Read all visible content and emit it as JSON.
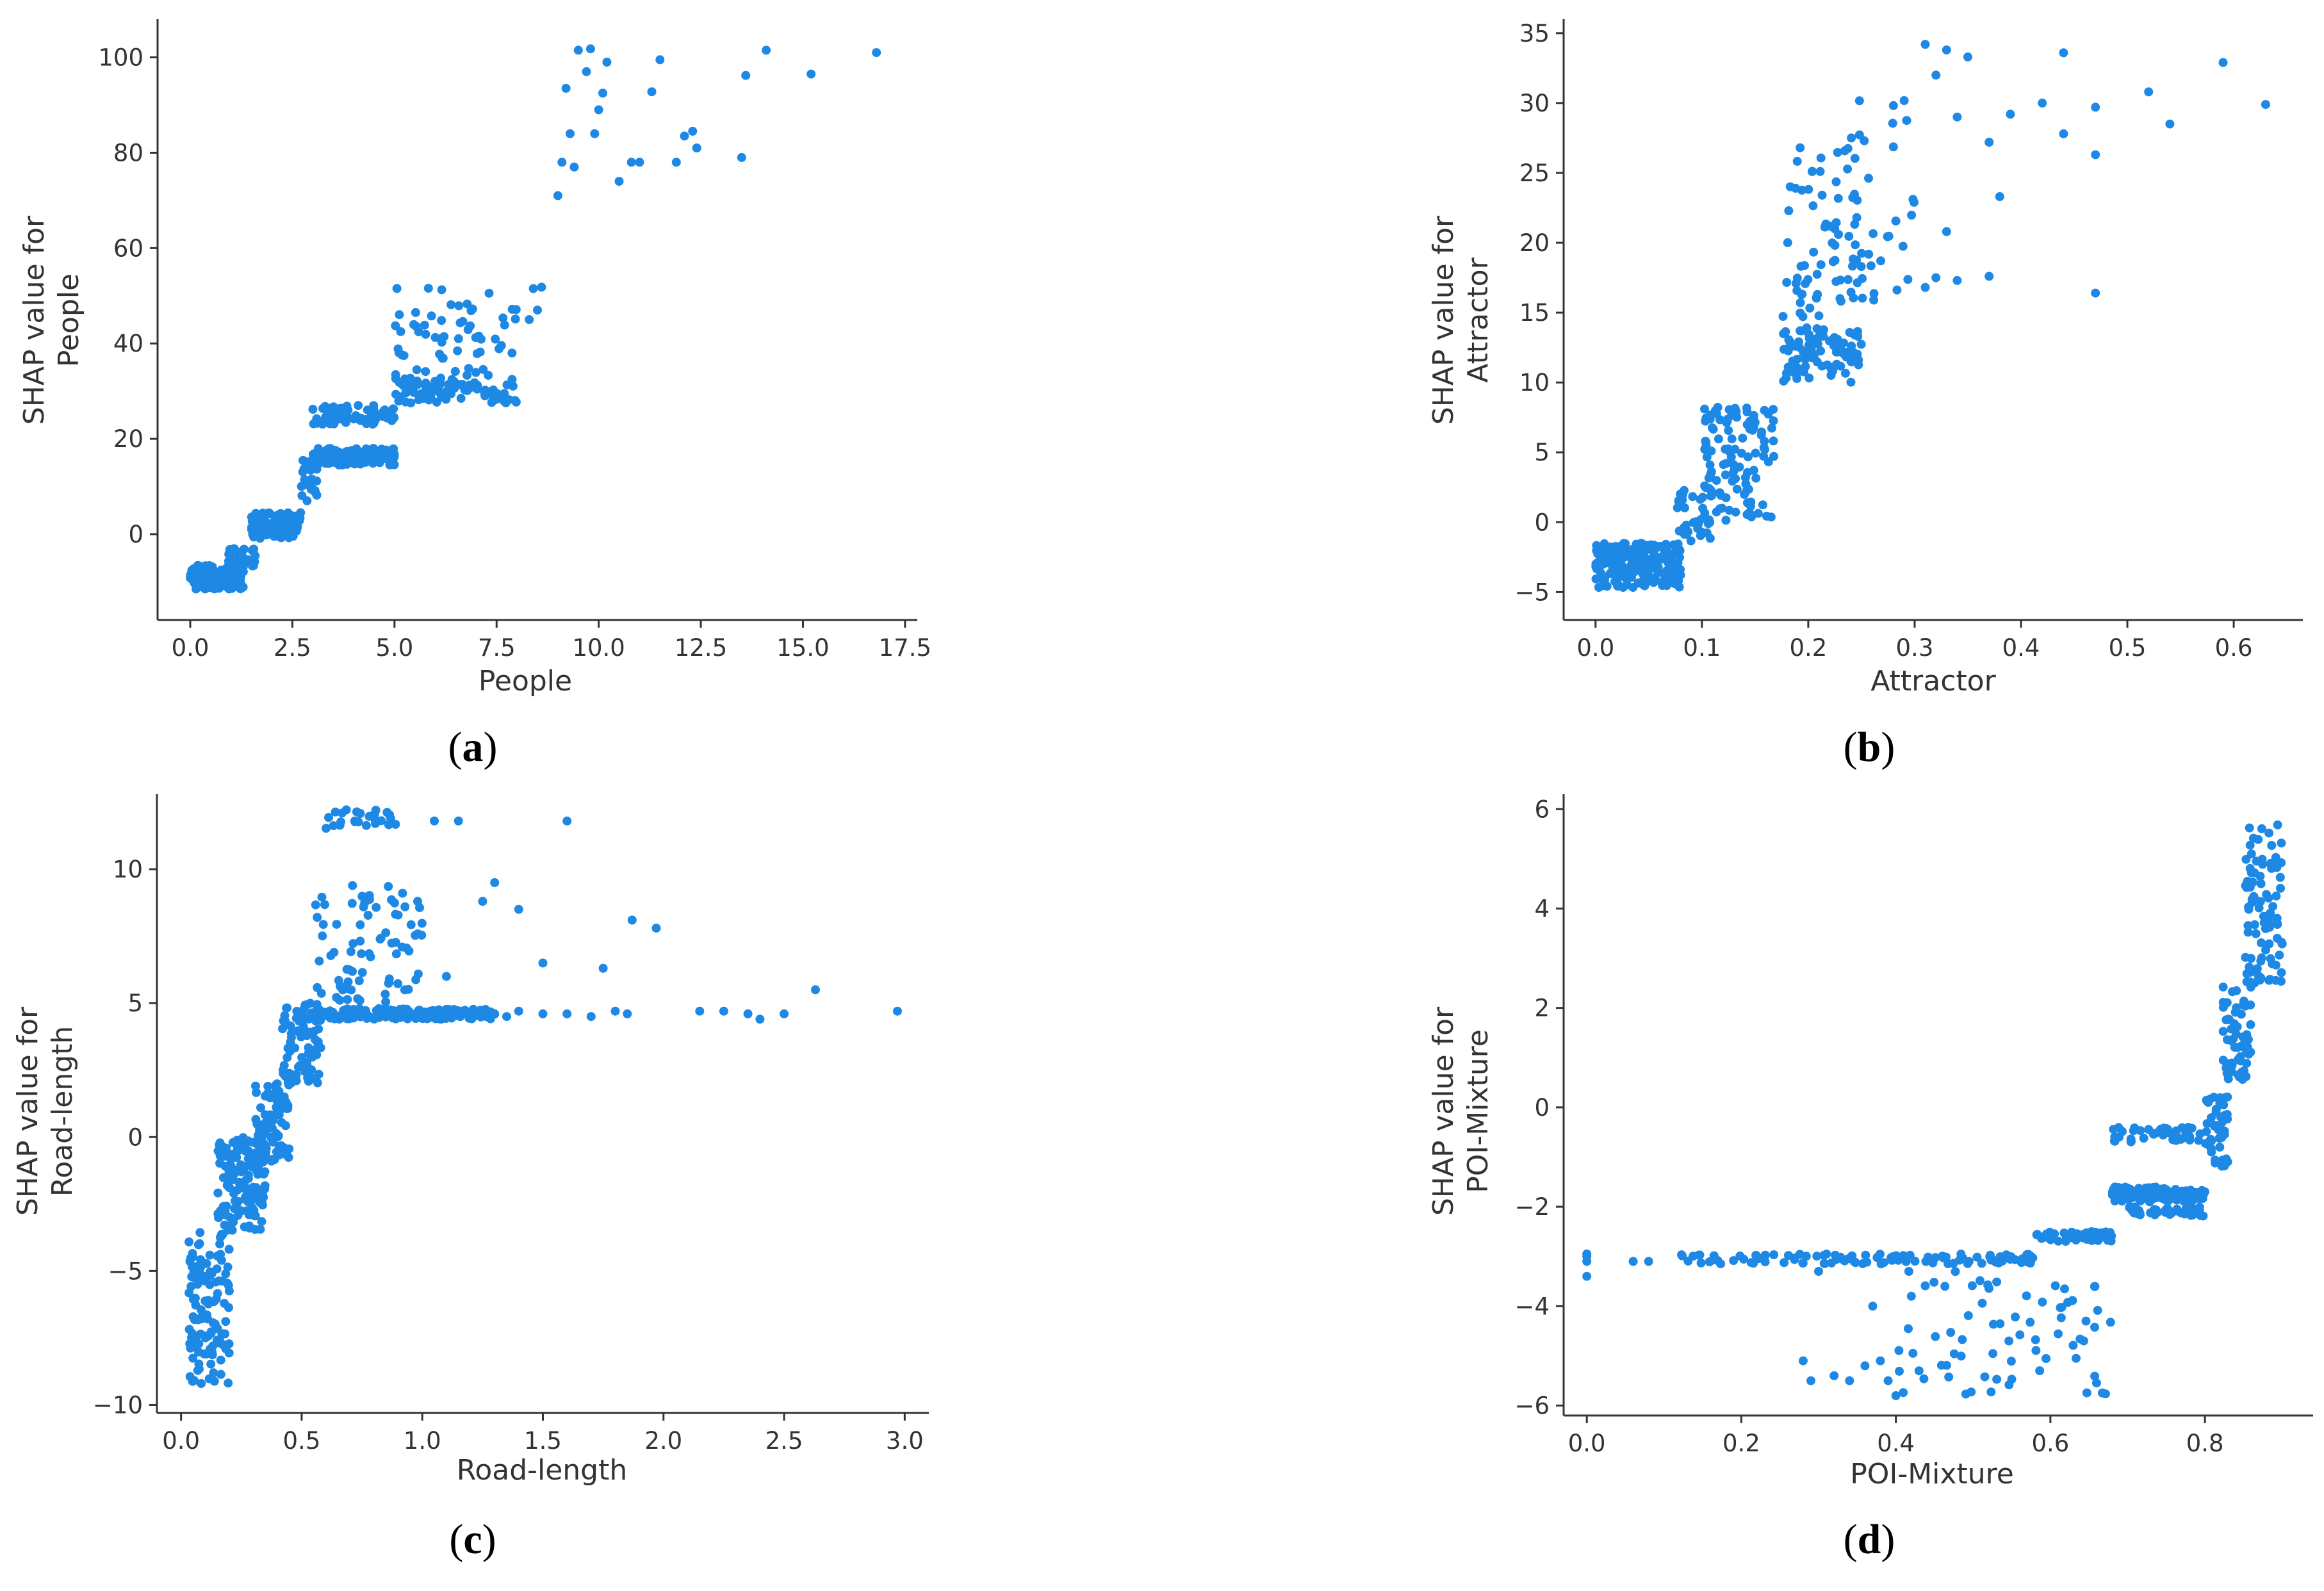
{
  "colors": {
    "point": "#1E88E5",
    "axis": "#333333",
    "text": "#333333"
  },
  "chart_data": [
    {
      "type": "scatter",
      "panel": "(a)",
      "caption_letter": "a",
      "xlabel": "People",
      "ylabel_line1": "SHAP value for",
      "ylabel_line2": "People",
      "xlim": [
        -0.8,
        17.8
      ],
      "ylim": [
        -18,
        108
      ],
      "xticks": [
        0.0,
        2.5,
        5.0,
        7.5,
        10.0,
        12.5,
        15.0,
        17.5
      ],
      "xtick_labels": [
        "0.0",
        "2.5",
        "5.0",
        "7.5",
        "10.0",
        "12.5",
        "15.0",
        "17.5"
      ],
      "yticks": [
        0,
        20,
        40,
        60,
        80,
        100
      ],
      "ytick_labels": [
        "0",
        "20",
        "40",
        "60",
        "80",
        "100"
      ],
      "clusters": [
        {
          "x": [
            0.0,
            1.3
          ],
          "y": [
            -11.5,
            -6.5
          ],
          "n": 150
        },
        {
          "x": [
            0.9,
            1.6
          ],
          "y": [
            -7,
            -3
          ],
          "n": 40
        },
        {
          "x": [
            1.5,
            2.7
          ],
          "y": [
            -1,
            4.5
          ],
          "n": 120
        },
        {
          "x": [
            2.7,
            3.1
          ],
          "y": [
            7,
            16
          ],
          "n": 25
        },
        {
          "x": [
            3.0,
            5.0
          ],
          "y": [
            14.5,
            18
          ],
          "n": 140
        },
        {
          "x": [
            3.0,
            5.0
          ],
          "y": [
            23,
            27
          ],
          "n": 70
        },
        {
          "x": [
            5.0,
            8.0
          ],
          "y": [
            27.5,
            33
          ],
          "n": 90
        },
        {
          "x": [
            5.0,
            8.0
          ],
          "y": [
            33,
            52
          ],
          "n": 60
        }
      ],
      "points": [
        [
          8.4,
          51.5
        ],
        [
          8.6,
          51.8
        ],
        [
          8.3,
          45
        ],
        [
          8.5,
          47
        ],
        [
          9.0,
          71
        ],
        [
          9.1,
          78
        ],
        [
          9.3,
          84
        ],
        [
          9.4,
          77
        ],
        [
          9.2,
          93.5
        ],
        [
          9.5,
          101.5
        ],
        [
          9.7,
          97
        ],
        [
          9.8,
          101.8
        ],
        [
          9.9,
          84
        ],
        [
          10.0,
          89
        ],
        [
          10.1,
          92.5
        ],
        [
          10.2,
          99
        ],
        [
          10.5,
          74
        ],
        [
          10.8,
          78
        ],
        [
          11.0,
          78
        ],
        [
          11.3,
          92.8
        ],
        [
          11.5,
          99.5
        ],
        [
          11.9,
          78
        ],
        [
          12.1,
          83.5
        ],
        [
          12.3,
          84.5
        ],
        [
          12.4,
          81
        ],
        [
          13.5,
          79
        ],
        [
          13.6,
          96.2
        ],
        [
          14.1,
          101.5
        ],
        [
          15.2,
          96.5
        ],
        [
          16.8,
          101
        ]
      ]
    },
    {
      "type": "scatter",
      "panel": "(b)",
      "caption_letter": "b",
      "xlabel": "Attractor",
      "ylabel_line1": "SHAP value for",
      "ylabel_line2": "Attractor",
      "xlim": [
        -0.03,
        0.665
      ],
      "ylim": [
        -7,
        36
      ],
      "xticks": [
        0.0,
        0.1,
        0.2,
        0.3,
        0.4,
        0.5,
        0.6
      ],
      "xtick_labels": [
        "0.0",
        "0.1",
        "0.2",
        "0.3",
        "0.4",
        "0.5",
        "0.6"
      ],
      "yticks": [
        -5,
        0,
        5,
        10,
        15,
        20,
        25,
        30,
        35
      ],
      "ytick_labels": [
        "−5",
        "0",
        "5",
        "10",
        "15",
        "20",
        "25",
        "30",
        "35"
      ],
      "clusters": [
        {
          "x": [
            0.0,
            0.08
          ],
          "y": [
            -4.7,
            -1.5
          ],
          "n": 220
        },
        {
          "x": [
            0.075,
            0.11
          ],
          "y": [
            -1.5,
            2.5
          ],
          "n": 35
        },
        {
          "x": [
            0.1,
            0.17
          ],
          "y": [
            0,
            8.5
          ],
          "n": 110
        },
        {
          "x": [
            0.175,
            0.25
          ],
          "y": [
            10,
            14
          ],
          "n": 90
        },
        {
          "x": [
            0.175,
            0.25
          ],
          "y": [
            14,
            27
          ],
          "n": 65
        },
        {
          "x": [
            0.22,
            0.3
          ],
          "y": [
            15.5,
            31
          ],
          "n": 35
        }
      ],
      "points": [
        [
          0.31,
          34.2
        ],
        [
          0.33,
          33.8
        ],
        [
          0.35,
          33.3
        ],
        [
          0.34,
          29
        ],
        [
          0.32,
          32
        ],
        [
          0.37,
          27.2
        ],
        [
          0.33,
          20.8
        ],
        [
          0.38,
          23.3
        ],
        [
          0.31,
          16.8
        ],
        [
          0.32,
          17.5
        ],
        [
          0.34,
          17.3
        ],
        [
          0.37,
          17.6
        ],
        [
          0.39,
          29.2
        ],
        [
          0.42,
          30
        ],
        [
          0.44,
          33.6
        ],
        [
          0.44,
          27.8
        ],
        [
          0.47,
          29.7
        ],
        [
          0.47,
          26.3
        ],
        [
          0.47,
          16.4
        ],
        [
          0.52,
          30.8
        ],
        [
          0.54,
          28.5
        ],
        [
          0.59,
          32.9
        ],
        [
          0.63,
          29.9
        ]
      ]
    },
    {
      "type": "scatter",
      "panel": "(c)",
      "caption_letter": "c",
      "xlabel": "Road-length",
      "ylabel_line1": "SHAP value for",
      "ylabel_line2": "Road-length",
      "xlim": [
        -0.1,
        3.1
      ],
      "ylim": [
        -10.3,
        12.8
      ],
      "xticks": [
        0.0,
        0.5,
        1.0,
        1.5,
        2.0,
        2.5,
        3.0
      ],
      "xtick_labels": [
        "0.0",
        "0.5",
        "1.0",
        "1.5",
        "2.0",
        "2.5",
        "3.0"
      ],
      "yticks": [
        -10,
        -5,
        0,
        5,
        10
      ],
      "ytick_labels": [
        "−10",
        "−5",
        "0",
        "5",
        "10"
      ],
      "clusters": [
        {
          "x": [
            0.03,
            0.2
          ],
          "y": [
            -9.4,
            -3.5
          ],
          "n": 120
        },
        {
          "x": [
            0.15,
            0.35
          ],
          "y": [
            -3.5,
            0
          ],
          "n": 150
        },
        {
          "x": [
            0.3,
            0.45
          ],
          "y": [
            -1,
            2
          ],
          "n": 80
        },
        {
          "x": [
            0.42,
            0.58
          ],
          "y": [
            2,
            5
          ],
          "n": 90
        },
        {
          "x": [
            0.55,
            1.3
          ],
          "y": [
            4.4,
            4.8
          ],
          "n": 200
        },
        {
          "x": [
            0.55,
            1.0
          ],
          "y": [
            5,
            9.5
          ],
          "n": 80
        },
        {
          "x": [
            0.6,
            0.9
          ],
          "y": [
            11.5,
            12.3
          ],
          "n": 25
        }
      ],
      "points": [
        [
          1.3,
          4.6
        ],
        [
          1.35,
          4.5
        ],
        [
          1.4,
          4.7
        ],
        [
          1.5,
          4.6
        ],
        [
          1.6,
          4.6
        ],
        [
          1.7,
          4.5
        ],
        [
          1.8,
          4.7
        ],
        [
          1.85,
          4.6
        ],
        [
          2.15,
          4.7
        ],
        [
          2.25,
          4.7
        ],
        [
          2.35,
          4.6
        ],
        [
          2.4,
          4.4
        ],
        [
          2.5,
          4.6
        ],
        [
          2.63,
          5.5
        ],
        [
          2.97,
          4.7
        ],
        [
          1.6,
          11.8
        ],
        [
          1.05,
          11.8
        ],
        [
          1.15,
          11.8
        ],
        [
          1.3,
          9.5
        ],
        [
          1.4,
          8.5
        ],
        [
          1.5,
          6.5
        ],
        [
          1.75,
          6.3
        ],
        [
          1.87,
          8.1
        ],
        [
          1.97,
          7.8
        ],
        [
          1.25,
          8.8
        ],
        [
          1.1,
          6
        ]
      ]
    },
    {
      "type": "scatter",
      "panel": "(d)",
      "caption_letter": "d",
      "xlabel": "POI-Mixture",
      "ylabel_line1": "SHAP value for",
      "ylabel_line2": "POI-Mixture",
      "xlim": [
        -0.03,
        0.94
      ],
      "ylim": [
        -6.2,
        6.3
      ],
      "xticks": [
        0.0,
        0.2,
        0.4,
        0.6,
        0.8
      ],
      "xtick_labels": [
        "0.0",
        "0.2",
        "0.4",
        "0.6",
        "0.8"
      ],
      "yticks": [
        -6,
        -4,
        -2,
        0,
        2,
        4,
        6
      ],
      "ytick_labels": [
        "−6",
        "−4",
        "−2",
        "0",
        "2",
        "4",
        "6"
      ],
      "clusters": [
        {
          "x": [
            0.12,
            0.58
          ],
          "y": [
            -3.15,
            -2.95
          ],
          "n": 110
        },
        {
          "x": [
            0.4,
            0.68
          ],
          "y": [
            -5.8,
            -3.3
          ],
          "n": 70
        },
        {
          "x": [
            0.58,
            0.68
          ],
          "y": [
            -2.7,
            -2.5
          ],
          "n": 50
        },
        {
          "x": [
            0.68,
            0.8
          ],
          "y": [
            -1.9,
            -1.6
          ],
          "n": 120
        },
        {
          "x": [
            0.7,
            0.8
          ],
          "y": [
            -2.2,
            -2.0
          ],
          "n": 40
        },
        {
          "x": [
            0.68,
            0.8
          ],
          "y": [
            -0.7,
            -0.4
          ],
          "n": 40
        },
        {
          "x": [
            0.8,
            0.83
          ],
          "y": [
            -1.2,
            0.3
          ],
          "n": 50
        },
        {
          "x": [
            0.82,
            0.86
          ],
          "y": [
            0.5,
            2.5
          ],
          "n": 60
        },
        {
          "x": [
            0.85,
            0.9
          ],
          "y": [
            2.5,
            5.7
          ],
          "n": 90
        }
      ],
      "points": [
        [
          0.0,
          -3.0
        ],
        [
          0.0,
          -3.1
        ],
        [
          0.0,
          -2.95
        ],
        [
          0.0,
          -3.4
        ],
        [
          0.06,
          -3.1
        ],
        [
          0.08,
          -3.1
        ],
        [
          0.28,
          -5.1
        ],
        [
          0.29,
          -5.5
        ],
        [
          0.3,
          -3.3
        ],
        [
          0.32,
          -5.4
        ],
        [
          0.34,
          -5.5
        ],
        [
          0.36,
          -5.2
        ],
        [
          0.38,
          -5.1
        ],
        [
          0.39,
          -5.5
        ],
        [
          0.4,
          -5.8
        ],
        [
          0.42,
          -3.8
        ],
        [
          0.43,
          -5.3
        ],
        [
          0.37,
          -4.0
        ]
      ]
    }
  ]
}
